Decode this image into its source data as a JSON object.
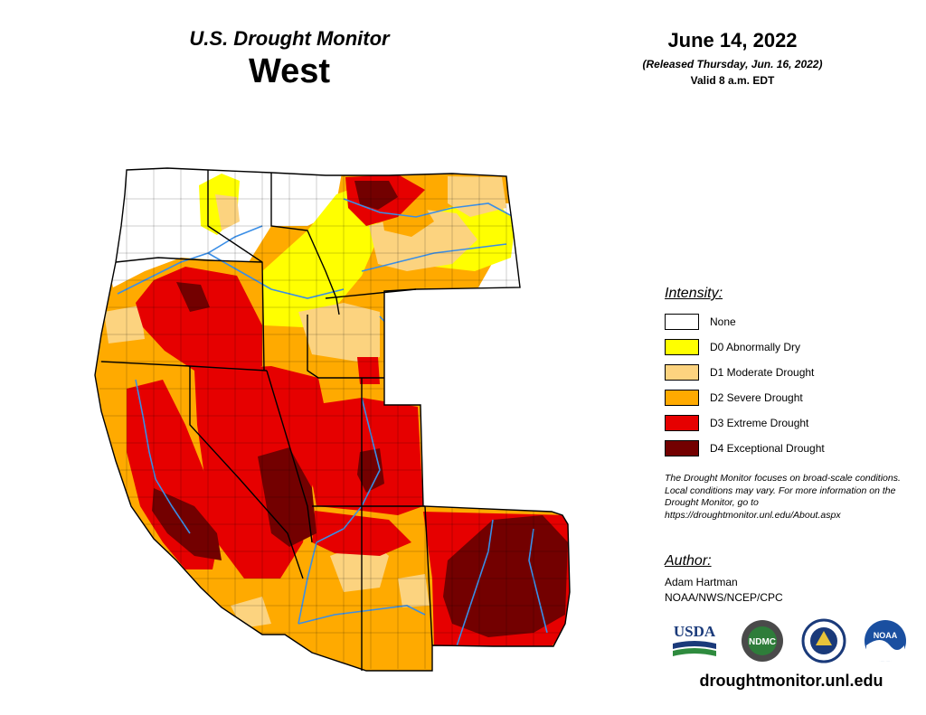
{
  "header": {
    "product": "U.S. Drought Monitor",
    "region": "West",
    "date": "June 14, 2022",
    "released": "(Released Thursday, Jun. 16, 2022)",
    "valid": "Valid 8 a.m. EDT"
  },
  "legend": {
    "title": "Intensity:",
    "items": [
      {
        "label": "None",
        "color": "#ffffff"
      },
      {
        "label": "D0 Abnormally Dry",
        "color": "#ffff00"
      },
      {
        "label": "D1 Moderate Drought",
        "color": "#fcd37f"
      },
      {
        "label": "D2 Severe Drought",
        "color": "#ffaa00"
      },
      {
        "label": "D3 Extreme Drought",
        "color": "#e60000"
      },
      {
        "label": "D4 Exceptional Drought",
        "color": "#730000"
      }
    ]
  },
  "note": "The Drought Monitor focuses on broad-scale conditions. Local conditions may vary. For more information on the Drought Monitor, go to https://droughtmonitor.unl.edu/About.aspx",
  "author": {
    "title": "Author:",
    "name": "Adam Hartman",
    "affiliation": "NOAA/NWS/NCEP/CPC"
  },
  "logos": {
    "usda": "USDA",
    "ndmc": "NDMC",
    "noaa": "NOAA"
  },
  "url": "droughtmonitor.unl.edu",
  "colors": {
    "none": "#ffffff",
    "d0": "#ffff00",
    "d1": "#fcd37f",
    "d2": "#ffaa00",
    "d3": "#e60000",
    "d4": "#730000",
    "rivers": "#3a8ee6",
    "borders": "#000000"
  }
}
